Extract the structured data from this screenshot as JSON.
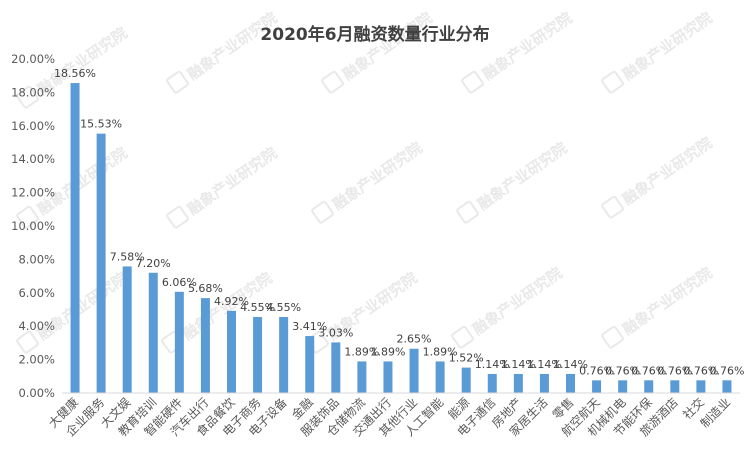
{
  "watermark": {
    "text": "融象产业研究院",
    "icon": "logo-mark-icon"
  },
  "chart_data": {
    "type": "bar",
    "title": "2020年6月融资数量行业分布",
    "xlabel": "",
    "ylabel": "",
    "ylim": [
      0,
      20
    ],
    "yticks": [
      "0.00%",
      "2.00%",
      "4.00%",
      "6.00%",
      "8.00%",
      "10.00%",
      "12.00%",
      "14.00%",
      "16.00%",
      "18.00%",
      "20.00%"
    ],
    "grid": false,
    "legend": "none",
    "bar_color": "#5b9bd5",
    "categories": [
      "大健康",
      "企业服务",
      "大文娱",
      "教育培训",
      "智能硬件",
      "汽车出行",
      "食品餐饮",
      "电子商务",
      "电子设备",
      "金融",
      "服装饰品",
      "仓储物流",
      "交通出行",
      "其他行业",
      "人工智能",
      "能源",
      "电子通信",
      "房地产",
      "家居生活",
      "零售",
      "航空航天",
      "机械机电",
      "节能环保",
      "旅游酒店",
      "社交",
      "制造业"
    ],
    "values": [
      18.56,
      15.53,
      7.58,
      7.2,
      6.06,
      5.68,
      4.92,
      4.55,
      4.55,
      3.41,
      3.03,
      1.89,
      1.89,
      2.65,
      1.89,
      1.52,
      1.14,
      1.14,
      1.14,
      1.14,
      0.76,
      0.76,
      0.76,
      0.76,
      0.76,
      0.76
    ],
    "data_labels": [
      "18.56%",
      "15.53%",
      "7.58%",
      "7.20%",
      "6.06%",
      "5.68%",
      "4.92%",
      "4.55%",
      "4.55%",
      "3.41%",
      "3.03%",
      "1.89%",
      "1.89%",
      "2.65%",
      "1.89%",
      "1.52%",
      "1.14%",
      "1.14%",
      "1.14%",
      "1.14%",
      "0.76%",
      "0.76%",
      "0.76%",
      "0.76%",
      "0.76%",
      "0.76%"
    ]
  }
}
